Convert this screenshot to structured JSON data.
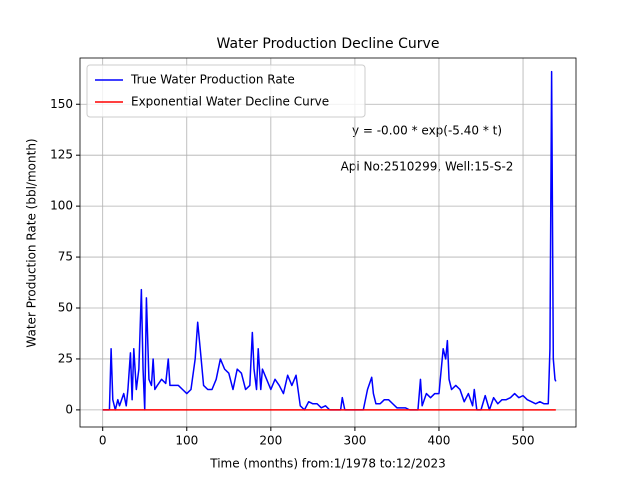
{
  "chart_data": {
    "type": "line",
    "title": "Water Production Decline Curve",
    "xlabel": "Time (months) from:1/1978 to:12/2023",
    "ylabel": "Water Production Rate (bbl/month)",
    "annotations": [
      "y = -0.00 * exp(-5.40 * t)",
      "Api No:2510299, Well:15-S-2"
    ],
    "xlim": [
      -27,
      563
    ],
    "ylim": [
      -8.4,
      172.7
    ],
    "xticks": [
      0,
      100,
      200,
      300,
      400,
      500
    ],
    "yticks": [
      0,
      25,
      50,
      75,
      100,
      125,
      150
    ],
    "grid": true,
    "legend": "upper left",
    "series": [
      {
        "name": "True Water Production Rate",
        "color": "#0000ff",
        "x": [
          0,
          8,
          10,
          12,
          15,
          18,
          20,
          25,
          28,
          30,
          33,
          35,
          37,
          40,
          43,
          46,
          48,
          50,
          52,
          55,
          58,
          60,
          62,
          65,
          70,
          75,
          78,
          80,
          85,
          90,
          95,
          100,
          105,
          110,
          113,
          116,
          120,
          125,
          130,
          135,
          140,
          145,
          150,
          155,
          160,
          165,
          170,
          175,
          178,
          180,
          183,
          185,
          188,
          190,
          195,
          200,
          205,
          210,
          215,
          220,
          225,
          230,
          235,
          240,
          245,
          250,
          255,
          260,
          265,
          270,
          283,
          285,
          288,
          300,
          310,
          315,
          320,
          322,
          325,
          330,
          335,
          340,
          345,
          350,
          355,
          360,
          365,
          375,
          378,
          380,
          385,
          390,
          395,
          400,
          405,
          408,
          410,
          412,
          415,
          420,
          425,
          430,
          435,
          440,
          442,
          445,
          450,
          455,
          460,
          465,
          470,
          475,
          480,
          485,
          490,
          495,
          500,
          505,
          510,
          515,
          520,
          525,
          530,
          532,
          534,
          536,
          538,
          539
        ],
        "values": [
          0,
          0,
          30,
          5,
          0,
          5,
          2,
          8,
          2,
          10,
          28,
          5,
          30,
          10,
          20,
          59,
          20,
          0,
          55,
          15,
          12,
          25,
          10,
          12,
          15,
          13,
          25,
          12,
          12,
          12,
          10,
          8,
          10,
          25,
          43,
          30,
          12,
          10,
          10,
          15,
          25,
          20,
          18,
          10,
          20,
          18,
          10,
          12,
          38,
          20,
          10,
          30,
          10,
          20,
          15,
          10,
          15,
          12,
          8,
          17,
          12,
          17,
          2,
          0,
          4,
          3,
          3,
          1,
          2,
          0,
          0,
          6,
          0,
          0,
          0,
          10,
          16,
          8,
          3,
          3,
          5,
          5,
          3,
          1,
          1,
          1,
          0,
          0,
          15,
          2,
          8,
          6,
          8,
          8,
          30,
          25,
          34,
          15,
          10,
          12,
          10,
          4,
          8,
          2,
          10,
          0,
          0,
          7,
          0,
          6,
          3,
          5,
          5,
          6,
          8,
          6,
          7,
          5,
          4,
          3,
          4,
          3,
          3,
          30,
          166,
          25,
          15,
          14
        ]
      },
      {
        "name": "Exponential Water Decline Curve",
        "color": "#ff0000",
        "x": [
          0,
          539
        ],
        "values": [
          0,
          0
        ]
      }
    ]
  }
}
